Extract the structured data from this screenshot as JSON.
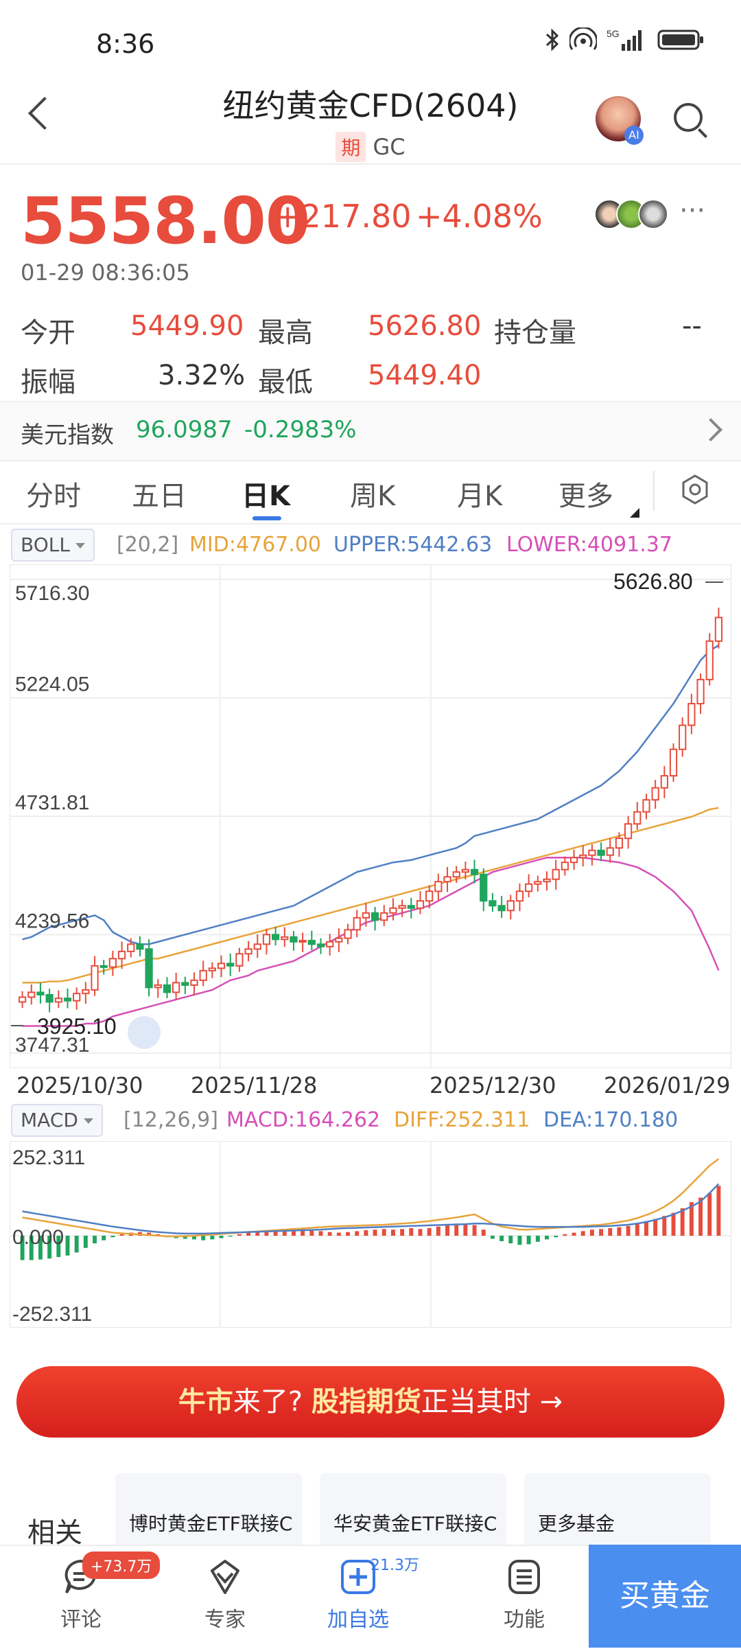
{
  "status_bar": {
    "time": "8:36",
    "icons": [
      "bluetooth-icon",
      "hotspot-icon",
      "signal-5g-icon",
      "battery-icon"
    ],
    "signal_label": "5G"
  },
  "header": {
    "title": "纽约黄金CFD(2604)",
    "tag": "期",
    "code": "GC",
    "ai_badge": "AI"
  },
  "quote": {
    "price": "5558.00",
    "change": "+217.80",
    "change_pct": "+4.08%",
    "datetime": "01-29 08:36:05",
    "more": "···"
  },
  "stats": {
    "open_label": "今开",
    "open": "5449.90",
    "high_label": "最高",
    "high": "5626.80",
    "oi_label": "持仓量",
    "oi": "--",
    "amp_label": "振幅",
    "amp": "3.32%",
    "low_label": "最低",
    "low": "5449.40"
  },
  "usd_index": {
    "label": "美元指数",
    "value": "96.0987",
    "change": "-0.2983%"
  },
  "tabs": [
    {
      "label": "分时"
    },
    {
      "label": "五日"
    },
    {
      "label": "日K"
    },
    {
      "label": "周K"
    },
    {
      "label": "月K"
    },
    {
      "label": "更多"
    }
  ],
  "boll": {
    "selector": "BOLL",
    "params": "[20,2]",
    "mid": "MID:4767.00",
    "upper": "UPPER:5442.63",
    "lower": "LOWER:4091.37"
  },
  "macd": {
    "selector": "MACD",
    "params": "[12,26,9]",
    "macd": "MACD:164.262",
    "diff": "DIFF:252.311",
    "dea": "DEA:170.180"
  },
  "colors": {
    "up": "#e74c3c",
    "down": "#1fa55c",
    "mid": "#e8a33a",
    "upper": "#4f7fc4",
    "lower": "#d64fb7",
    "accent": "#3a78e6"
  },
  "chart_data": [
    {
      "type": "candlestick",
      "title": "",
      "y_ticks": [
        "5716.30",
        "5224.05",
        "4731.81",
        "4239.56",
        "3747.31"
      ],
      "ylim": [
        3747.31,
        5716.3
      ],
      "x_ticks": [
        "2025/10/30",
        "2025/11/28",
        "2025/12/30",
        "2026/01/29"
      ],
      "high_label": "5626.80",
      "low_label": "3925.10",
      "grid": true,
      "closes": [
        3980,
        4000,
        3990,
        3960,
        3975,
        3965,
        3995,
        4010,
        4110,
        4105,
        4140,
        4170,
        4200,
        4180,
        4020,
        4030,
        4000,
        4040,
        4030,
        4050,
        4090,
        4100,
        4120,
        4110,
        4160,
        4180,
        4200,
        4240,
        4220,
        4230,
        4210,
        4215,
        4200,
        4190,
        4210,
        4225,
        4260,
        4310,
        4330,
        4300,
        4330,
        4350,
        4360,
        4350,
        4380,
        4420,
        4460,
        4480,
        4500,
        4510,
        4490,
        4380,
        4360,
        4340,
        4380,
        4420,
        4450,
        4460,
        4470,
        4510,
        4540,
        4560,
        4570,
        4590,
        4570,
        4600,
        4640,
        4700,
        4750,
        4800,
        4850,
        4900,
        5010,
        5110,
        5200,
        5300,
        5460,
        5558
      ],
      "mid_band": [
        4040,
        4040,
        4040,
        4045,
        4045,
        4050,
        4060,
        4070,
        4080,
        4090,
        4100,
        4110,
        4120,
        4130,
        4140,
        4140,
        4150,
        4160,
        4170,
        4180,
        4190,
        4200,
        4210,
        4220,
        4230,
        4240,
        4250,
        4260,
        4270,
        4280,
        4290,
        4300,
        4310,
        4320,
        4330,
        4340,
        4350,
        4360,
        4370,
        4380,
        4390,
        4400,
        4410,
        4420,
        4430,
        4440,
        4450,
        4460,
        4470,
        4480,
        4490,
        4500,
        4510,
        4520,
        4530,
        4540,
        4550,
        4560,
        4570,
        4580,
        4590,
        4600,
        4610,
        4620,
        4630,
        4640,
        4650,
        4660,
        4670,
        4680,
        4690,
        4700,
        4710,
        4720,
        4730,
        4745,
        4760,
        4767
      ],
      "upper_band": [
        4220,
        4230,
        4250,
        4270,
        4280,
        4290,
        4300,
        4310,
        4320,
        4300,
        4250,
        4230,
        4210,
        4200,
        4200,
        4210,
        4220,
        4230,
        4240,
        4250,
        4260,
        4270,
        4280,
        4290,
        4300,
        4310,
        4320,
        4330,
        4340,
        4350,
        4360,
        4380,
        4400,
        4420,
        4440,
        4460,
        4480,
        4500,
        4510,
        4520,
        4530,
        4540,
        4545,
        4550,
        4560,
        4570,
        4580,
        4590,
        4600,
        4620,
        4650,
        4660,
        4670,
        4680,
        4690,
        4700,
        4710,
        4720,
        4740,
        4760,
        4780,
        4800,
        4820,
        4840,
        4860,
        4890,
        4920,
        4960,
        5000,
        5050,
        5100,
        5150,
        5200,
        5260,
        5320,
        5380,
        5420,
        5442
      ],
      "lower_band": [
        3860,
        3860,
        3860,
        3860,
        3860,
        3860,
        3860,
        3870,
        3870,
        3880,
        3900,
        3910,
        3920,
        3930,
        3940,
        3950,
        3960,
        3970,
        3980,
        3990,
        4000,
        4010,
        4030,
        4050,
        4060,
        4070,
        4090,
        4100,
        4110,
        4120,
        4130,
        4150,
        4170,
        4190,
        4210,
        4230,
        4250,
        4270,
        4290,
        4300,
        4310,
        4320,
        4330,
        4340,
        4350,
        4360,
        4380,
        4400,
        4420,
        4440,
        4460,
        4480,
        4500,
        4510,
        4520,
        4530,
        4540,
        4550,
        4560,
        4560,
        4560,
        4560,
        4560,
        4555,
        4550,
        4545,
        4540,
        4530,
        4520,
        4500,
        4480,
        4450,
        4420,
        4380,
        4340,
        4260,
        4180,
        4091
      ]
    },
    {
      "type": "bar",
      "title": "",
      "y_ticks": [
        "252.311",
        "0.000",
        "-252.311"
      ],
      "ylim": [
        -252.311,
        252.311
      ],
      "grid": true,
      "histogram": [
        -80,
        -80,
        -78,
        -75,
        -70,
        -65,
        -55,
        -40,
        -25,
        -15,
        -5,
        5,
        10,
        12,
        10,
        5,
        -5,
        -8,
        -10,
        -12,
        -15,
        -12,
        -8,
        -3,
        5,
        10,
        15,
        18,
        20,
        22,
        25,
        22,
        20,
        15,
        12,
        10,
        12,
        15,
        18,
        20,
        22,
        20,
        22,
        25,
        22,
        25,
        30,
        35,
        40,
        38,
        35,
        20,
        -10,
        -18,
        -25,
        -30,
        -28,
        -20,
        -12,
        -5,
        5,
        10,
        15,
        20,
        22,
        25,
        28,
        32,
        40,
        48,
        55,
        65,
        75,
        90,
        110,
        125,
        140,
        164
      ],
      "diff": [
        60,
        55,
        50,
        45,
        40,
        35,
        30,
        25,
        20,
        15,
        10,
        8,
        6,
        4,
        2,
        0,
        -2,
        -2,
        -1,
        0,
        2,
        4,
        6,
        8,
        10,
        12,
        14,
        16,
        18,
        20,
        22,
        24,
        26,
        28,
        30,
        31,
        32,
        33,
        34,
        35,
        36,
        38,
        40,
        42,
        45,
        48,
        52,
        56,
        60,
        65,
        70,
        55,
        40,
        30,
        25,
        20,
        20,
        22,
        24,
        26,
        28,
        30,
        32,
        34,
        36,
        40,
        45,
        50,
        58,
        68,
        80,
        95,
        115,
        140,
        170,
        200,
        230,
        252
      ],
      "dea": [
        80,
        75,
        70,
        65,
        60,
        55,
        50,
        45,
        40,
        35,
        30,
        26,
        22,
        18,
        15,
        12,
        10,
        8,
        7,
        7,
        7,
        8,
        9,
        10,
        11,
        12,
        13,
        14,
        15,
        16,
        17,
        18,
        19,
        20,
        22,
        24,
        25,
        26,
        27,
        28,
        29,
        30,
        31,
        32,
        33,
        34,
        35,
        36,
        37,
        38,
        40,
        40,
        38,
        36,
        34,
        32,
        30,
        29,
        29,
        29,
        29,
        29,
        29,
        30,
        31,
        32,
        34,
        36,
        40,
        45,
        52,
        60,
        70,
        82,
        96,
        112,
        140,
        170
      ]
    }
  ],
  "banner": {
    "part1": "牛市",
    "part2": "来了?",
    "part3": "股指期货",
    "part4": "正当其时",
    "arrow": "→"
  },
  "related": {
    "label": "相关",
    "funds": [
      "博时黄金ETF联接C",
      "华安黄金ETF联接C",
      "更多基金"
    ]
  },
  "bottom_bar": {
    "comment": {
      "label": "评论",
      "badge": "+73.7万"
    },
    "expert": {
      "label": "专家"
    },
    "add": {
      "label": "加自选",
      "badge": "21.3万"
    },
    "func": {
      "label": "功能"
    },
    "buy": {
      "label": "买黄金"
    }
  }
}
